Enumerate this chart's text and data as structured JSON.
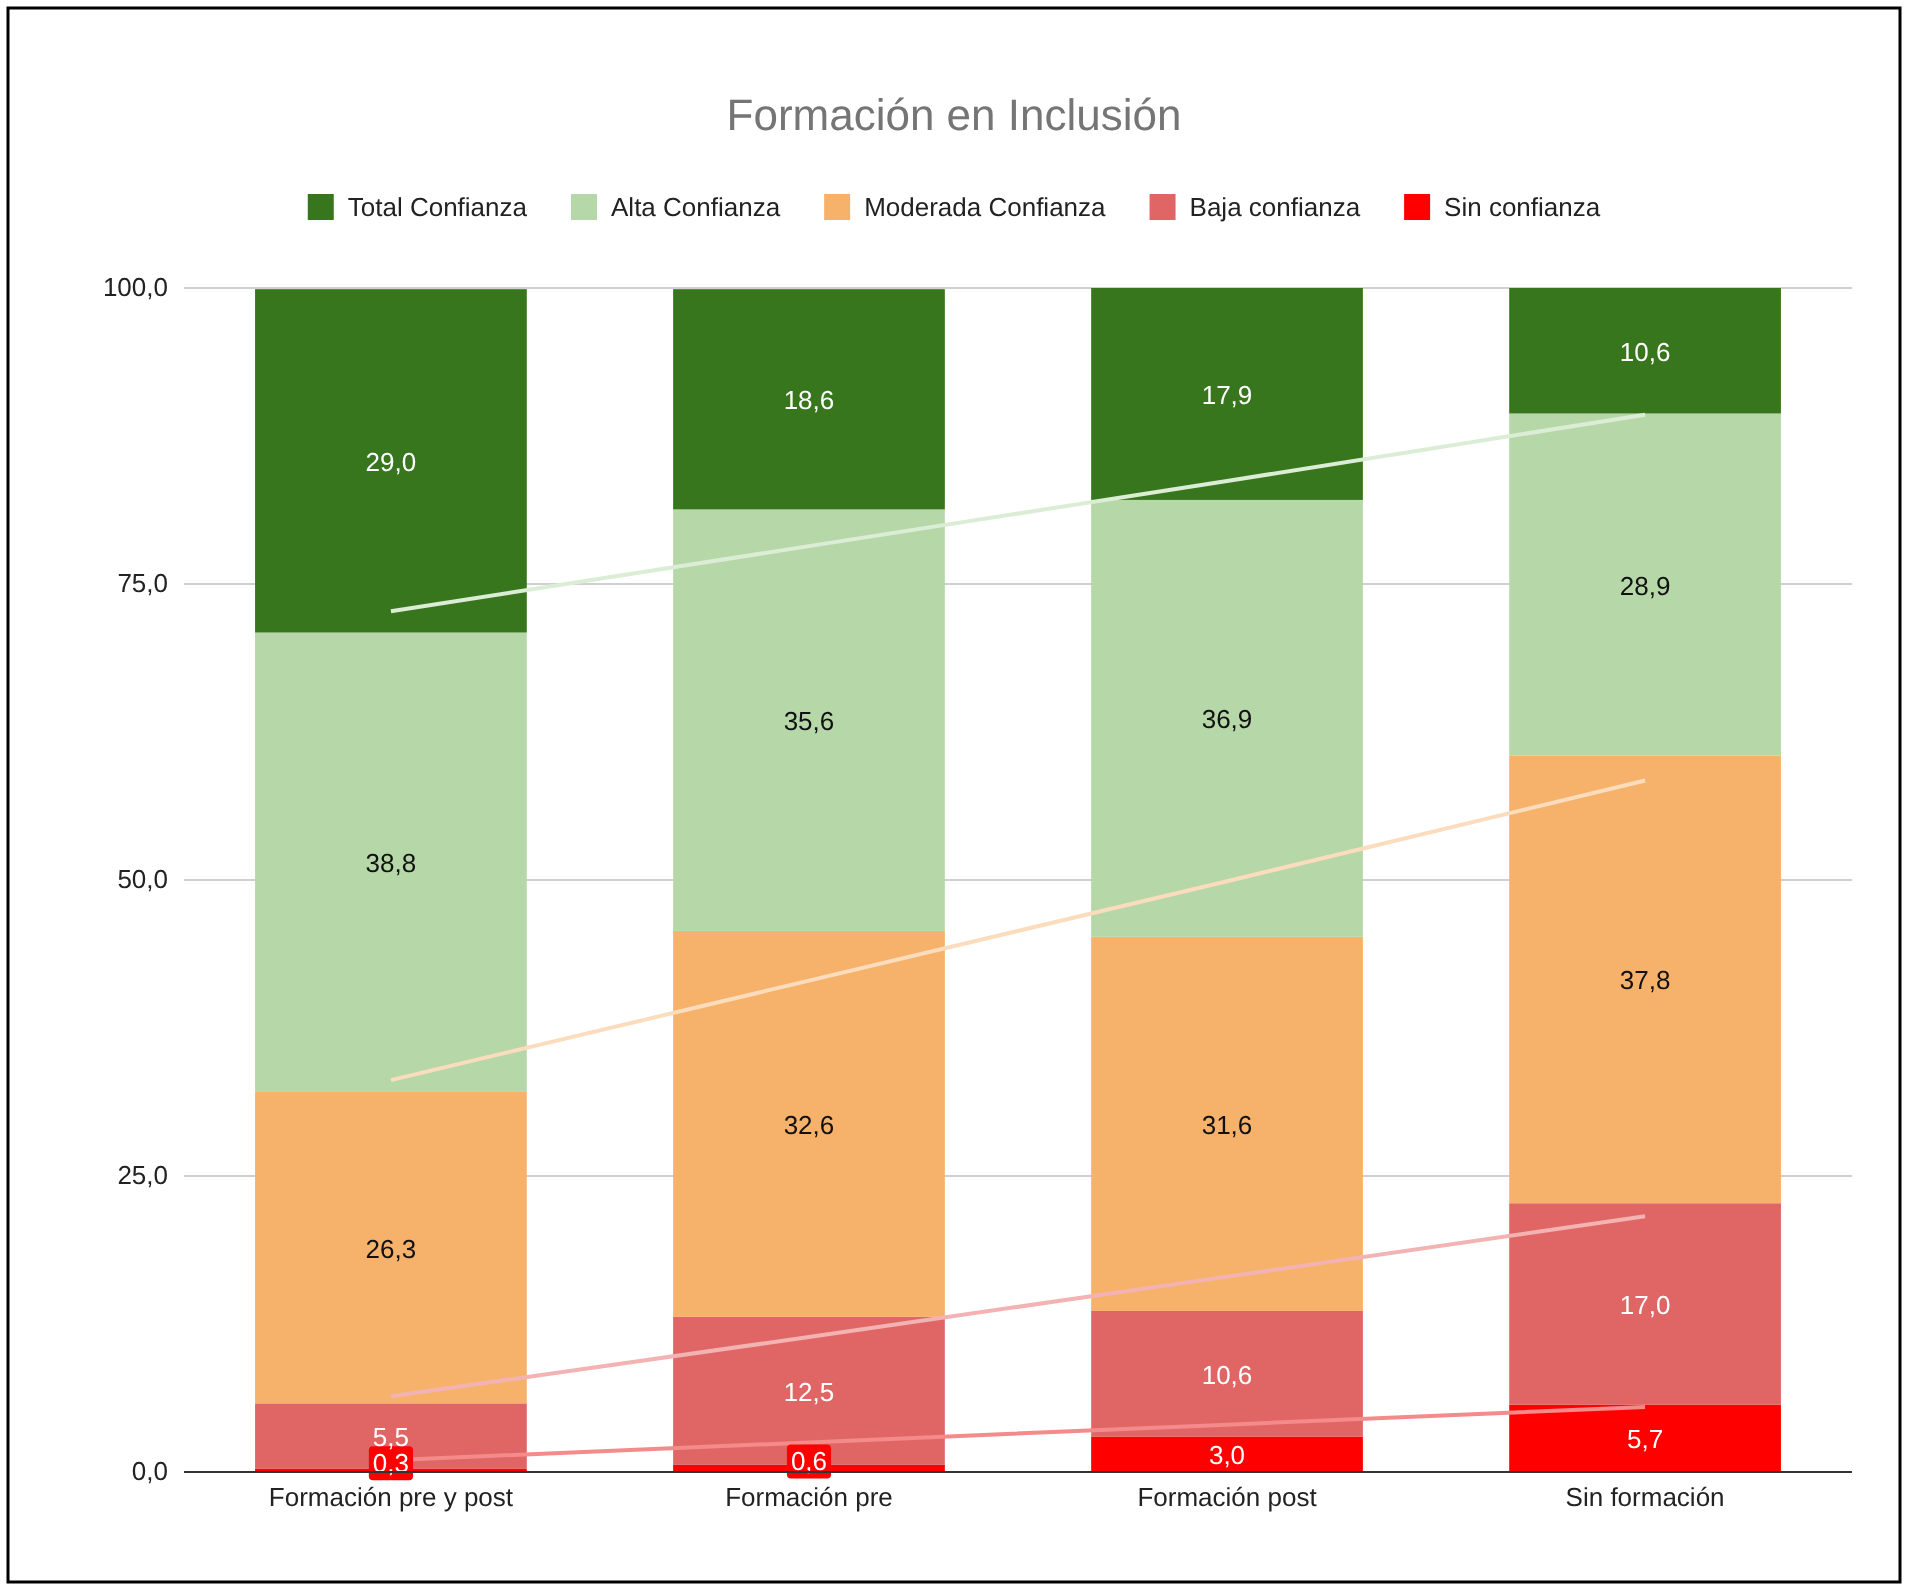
{
  "chart_data": {
    "type": "bar",
    "title": "Formación en Inclusión",
    "stacked": true,
    "categories": [
      "Formación pre y post",
      "Formación pre",
      "Formación post",
      "Sin formación"
    ],
    "series": [
      {
        "name": "Sin confianza",
        "color": "#ff0000",
        "values": [
          0.3,
          0.6,
          3.0,
          5.7
        ],
        "value_labels": [
          "0,3",
          "0,6",
          "3,0",
          "5,7"
        ]
      },
      {
        "name": "Baja confianza",
        "color": "#e06666",
        "values": [
          5.5,
          12.5,
          10.6,
          17.0
        ],
        "value_labels": [
          "5,5",
          "12,5",
          "10,6",
          "17,0"
        ]
      },
      {
        "name": "Moderada Confianza",
        "color": "#f6b26b",
        "values": [
          26.3,
          32.6,
          31.6,
          37.8
        ],
        "value_labels": [
          "26,3",
          "32,6",
          "31,6",
          "37,8"
        ]
      },
      {
        "name": "Alta Confianza",
        "color": "#b6d7a8",
        "values": [
          38.8,
          35.6,
          36.9,
          28.9
        ],
        "value_labels": [
          "38,8",
          "35,6",
          "36,9",
          "28,9"
        ]
      },
      {
        "name": "Total Confianza",
        "color": "#38761d",
        "values": [
          29.0,
          18.6,
          17.9,
          10.6
        ],
        "value_labels": [
          "29,0",
          "18,6",
          "17,9",
          "10,6"
        ]
      },
      {
        "type": "line",
        "color": "#dcedd6",
        "values": [
          72.7,
          78.2,
          83.7,
          89.3
        ]
      },
      {
        "type": "line",
        "color": "#fbdcbc",
        "values": [
          33.1,
          41.5,
          49.9,
          58.4
        ]
      },
      {
        "type": "line",
        "color": "#f3b3b3",
        "values": [
          6.4,
          11.4,
          16.5,
          21.6
        ]
      },
      {
        "type": "line",
        "color": "#f48a8a",
        "values": [
          1.0,
          2.5,
          4.0,
          5.5
        ]
      }
    ],
    "ylim": [
      0,
      100
    ],
    "yticks": [
      {
        "value": 0,
        "label": "0,0"
      },
      {
        "value": 25,
        "label": "25,0"
      },
      {
        "value": 50,
        "label": "50,0"
      },
      {
        "value": 75,
        "label": "75,0"
      },
      {
        "value": 100,
        "label": "100,0"
      }
    ],
    "grid": "y",
    "legend": "top"
  }
}
